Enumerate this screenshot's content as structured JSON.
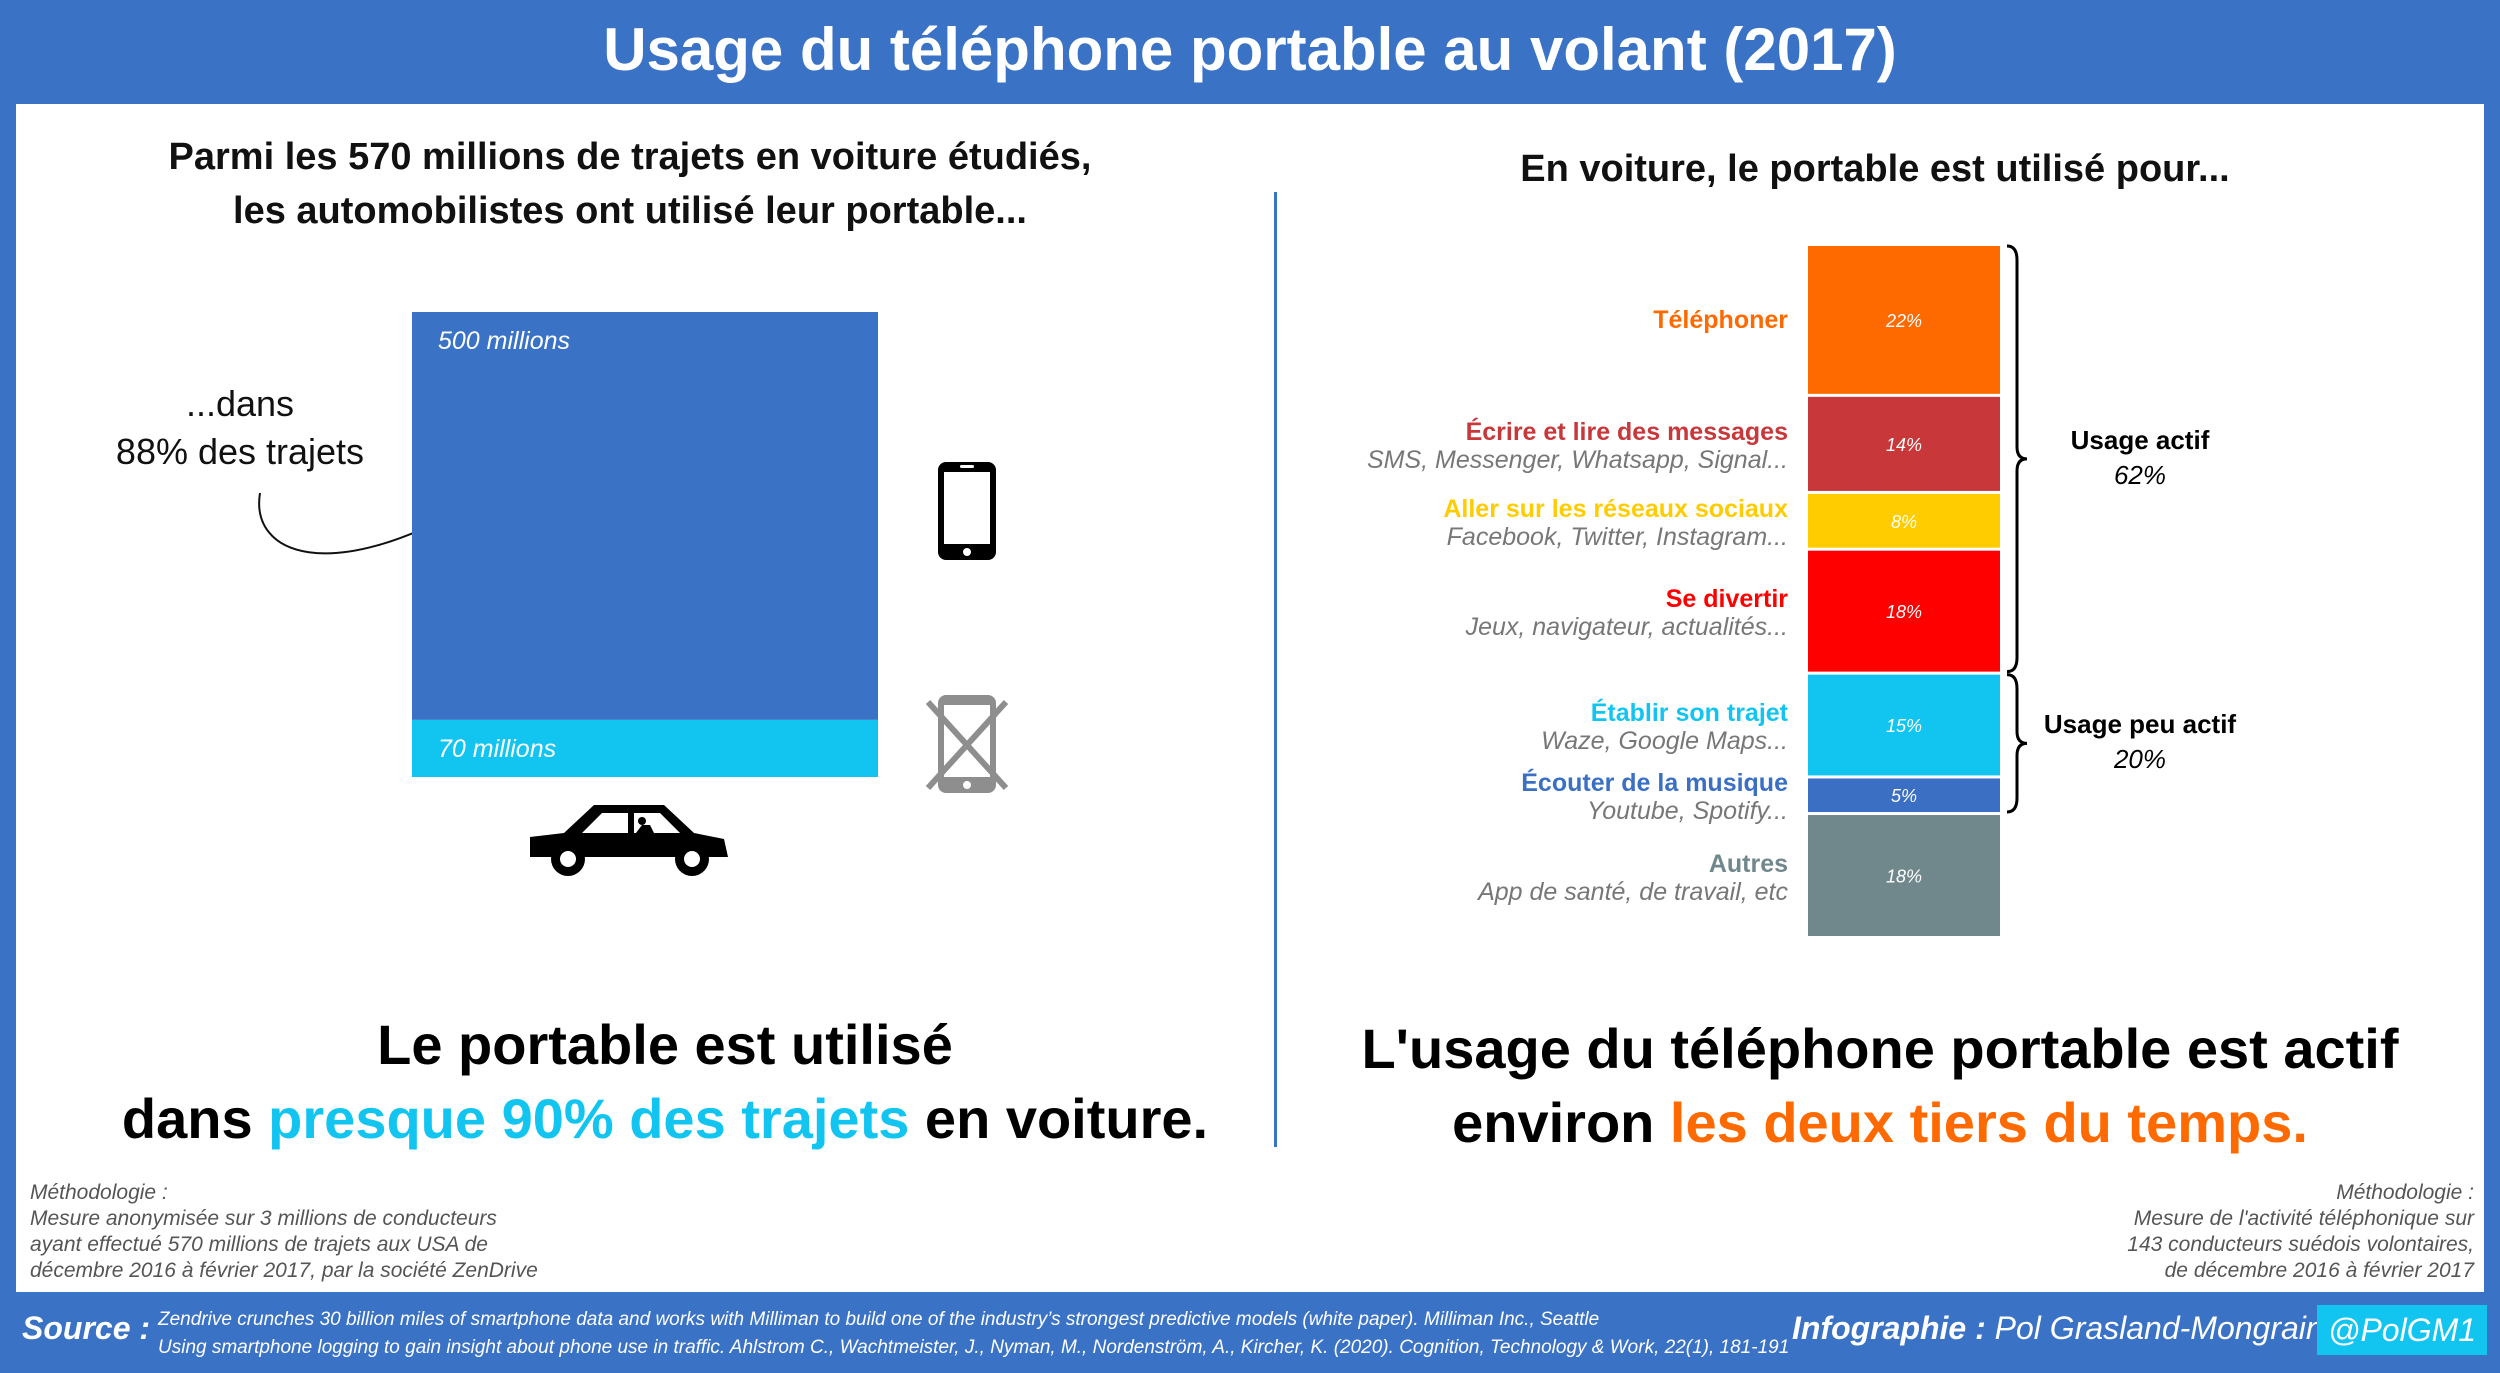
{
  "title": "Usage du téléphone portable au volant (2017)",
  "left": {
    "subtitle_line1": "Parmi les 570 millions de trajets en voiture étudiés,",
    "subtitle_line2": "les automobilistes ont utilisé leur portable...",
    "dans_line1": "...dans",
    "dans_line2": "88% des trajets",
    "conclusion_line1": "Le portable est utilisé",
    "conclusion_pre": "dans ",
    "conclusion_highlight": "presque 90% des trajets",
    "conclusion_post": " en voiture.",
    "methodology": [
      "Méthodologie :",
      "Mesure anonymisée sur 3 millions de conducteurs",
      "ayant effectué 570 millions de trajets aux USA de",
      "décembre 2016 à février 2017, par la société ZenDrive"
    ]
  },
  "right": {
    "subtitle": "En voiture, le portable est utilisé pour...",
    "conclusion_line1": "L'usage du téléphone portable est actif",
    "conclusion_pre": "environ ",
    "conclusion_highlight": "les deux tiers du temps.",
    "methodology": [
      "Méthodologie :",
      "Mesure de l'activité téléphonique sur",
      "143 conducteurs suédois volontaires,",
      "de décembre 2016 à février 2017"
    ]
  },
  "colors": {
    "background_blue": "#3a72c6",
    "cyan": "#12c5f0",
    "orange": "#ff6a00",
    "telephoner": "#ff6a00",
    "messages": "#c8373a",
    "reseaux": "#ffcc00",
    "divertir": "#ff0000",
    "trajet": "#12c5f0",
    "musique": "#3a6fc4",
    "autres": "#70888c"
  },
  "icons": {
    "car": "car-icon",
    "phone": "smartphone-icon",
    "no_phone": "crossed-phone-icon"
  },
  "footer": {
    "source_label": "Source :",
    "ref1": "Zendrive crunches 30 billion miles of smartphone data  and works with Milliman to build one of the industry’s strongest  predictive models (white paper). Milliman Inc., Seattle",
    "ref2": "Using smartphone logging to gain insight about phone use in traffic. Ahlstrom C., Wachtmeister, J., Nyman, M., Nordenström, A., Kircher, K. (2020). Cognition, Technology & Work, 22(1), 181-191",
    "credit_label": "Infographie :",
    "credit_name": " Pol Grasland-Mongrain",
    "handle": "@PolGM1"
  },
  "chart_data": [
    {
      "type": "bar",
      "stacked": true,
      "categories": [
        "Trajets"
      ],
      "series": [
        {
          "name": "500 millions",
          "values": [
            500
          ],
          "color": "#3a72c6"
        },
        {
          "name": "70 millions",
          "values": [
            70
          ],
          "color": "#12c5f0"
        }
      ],
      "total": 570,
      "annotation": "...dans 88% des trajets"
    },
    {
      "type": "bar",
      "stacked": true,
      "unit": "%",
      "categories": [
        "Téléphoner",
        "Écrire et lire des messages",
        "Aller sur les réseaux sociaux",
        "Se divertir",
        "Établir son trajet",
        "Écouter de la musique",
        "Autres"
      ],
      "subtitles": [
        "",
        "SMS, Messenger, Whatsapp, Signal...",
        "Facebook, Twitter, Instagram...",
        "Jeux, navigateur, actualités...",
        "Waze, Google Maps...",
        "Youtube, Spotify...",
        "App de santé, de travail, etc"
      ],
      "values": [
        22,
        14,
        8,
        18,
        15,
        5,
        18
      ],
      "value_labels": [
        "22%",
        "14%",
        "8%",
        "18%",
        "15%",
        "5%",
        "18%"
      ],
      "colors": [
        "#ff6a00",
        "#c8373a",
        "#ffcc00",
        "#ff0000",
        "#12c5f0",
        "#3a6fc4",
        "#70888c"
      ],
      "groups": [
        {
          "name": "Usage actif",
          "value": "62%",
          "from": 0,
          "to": 3
        },
        {
          "name": "Usage peu actif",
          "value": "20%",
          "from": 4,
          "to": 5
        }
      ]
    }
  ]
}
